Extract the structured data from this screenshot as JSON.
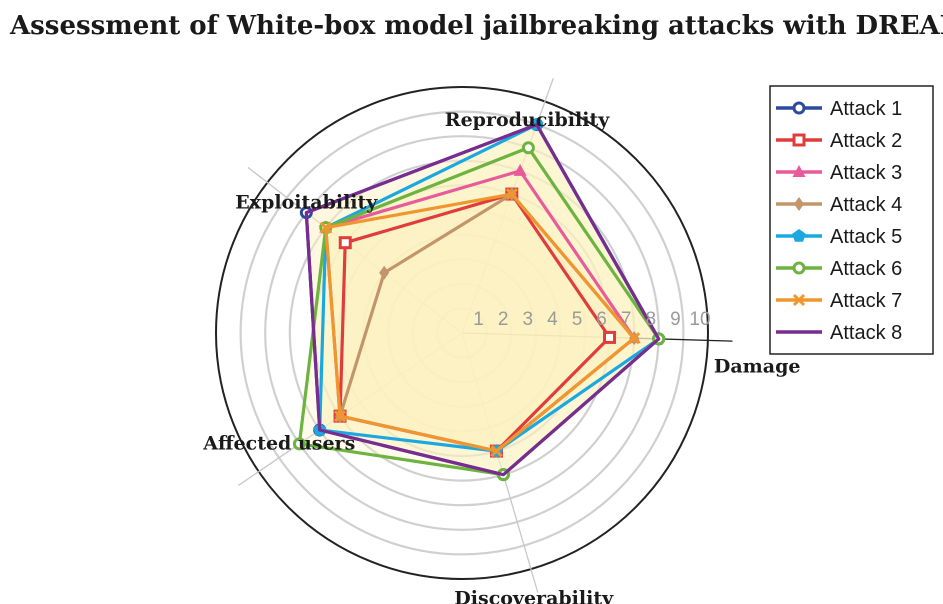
{
  "chart_data": {
    "type": "radar",
    "title": "Assessment of White-box model jailbreaking attacks with DREAD",
    "axes": [
      "Damage",
      "Reproducibility",
      "Exploitability",
      "Affected users",
      "Discoverability"
    ],
    "rlim": [
      0,
      10
    ],
    "ticks": [
      "1",
      "2",
      "3",
      "4",
      "5",
      "6",
      "7",
      "8",
      "9",
      "10"
    ],
    "grid": true,
    "legend_position": "top-right",
    "series": [
      {
        "name": "Attack 1",
        "color": "#2e4a9e",
        "marker": "circle-open",
        "values": [
          8,
          9,
          8,
          7,
          6
        ]
      },
      {
        "name": "Attack 2",
        "color": "#e03c3c",
        "marker": "square-open",
        "values": [
          6,
          6,
          6,
          6,
          5
        ]
      },
      {
        "name": "Attack 3",
        "color": "#e85b9b",
        "marker": "triangle",
        "values": [
          7,
          7,
          7,
          6,
          5
        ]
      },
      {
        "name": "Attack 4",
        "color": "#c2956a",
        "marker": "diamond",
        "values": [
          7,
          6,
          4,
          6,
          5
        ]
      },
      {
        "name": "Attack 5",
        "color": "#1ba7e0",
        "marker": "pentagon",
        "values": [
          8,
          9,
          7,
          7,
          5
        ]
      },
      {
        "name": "Attack 6",
        "color": "#6db33f",
        "marker": "circle-open",
        "values": [
          8,
          8,
          7,
          8,
          6
        ]
      },
      {
        "name": "Attack 7",
        "color": "#f0962e",
        "marker": "x",
        "values": [
          7,
          6,
          7,
          6,
          5
        ]
      },
      {
        "name": "Attack 8",
        "color": "#7a2b8f",
        "marker": "none",
        "values": [
          8,
          9,
          8,
          7,
          6
        ]
      }
    ]
  }
}
